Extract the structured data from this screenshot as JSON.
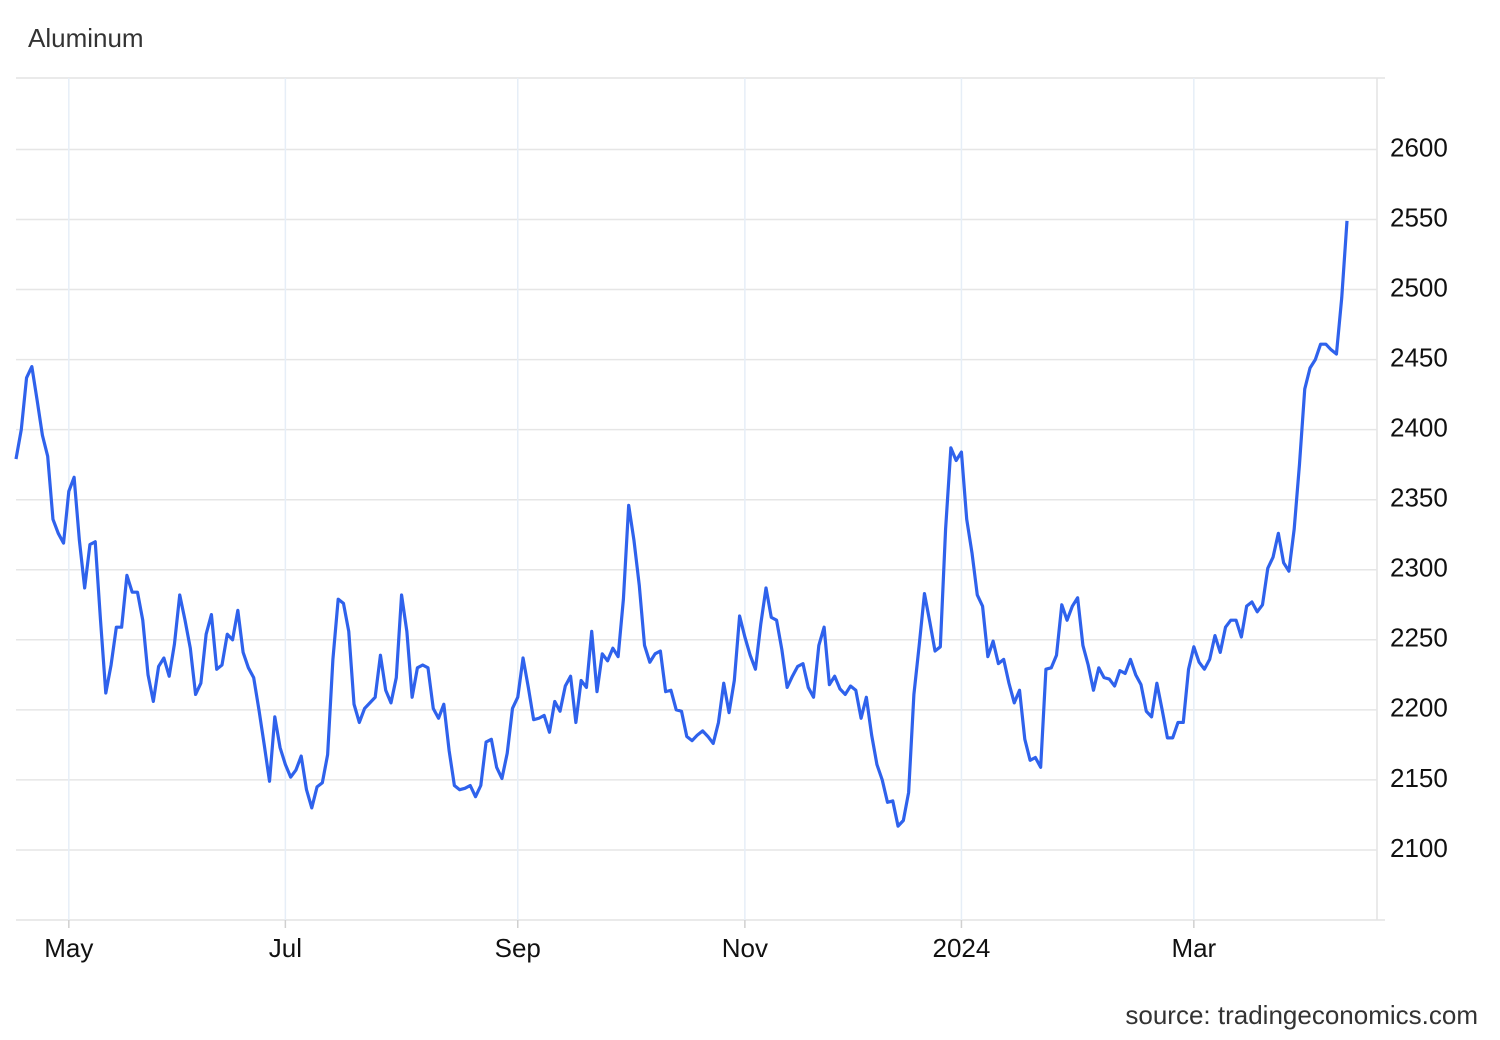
{
  "chart_data": {
    "type": "line",
    "title": "Aluminum",
    "source": "source: tradingeconomics.com",
    "categories": [
      null,
      null,
      null,
      null,
      null,
      null,
      null,
      null,
      null,
      null,
      "May",
      null,
      null,
      null,
      null,
      null,
      null,
      null,
      null,
      null,
      null,
      null,
      null,
      null,
      null,
      null,
      null,
      null,
      null,
      null,
      null,
      null,
      null,
      null,
      null,
      null,
      null,
      null,
      null,
      null,
      null,
      null,
      null,
      null,
      null,
      null,
      null,
      null,
      null,
      null,
      null,
      "Jul",
      null,
      null,
      null,
      null,
      null,
      null,
      null,
      null,
      null,
      null,
      null,
      null,
      null,
      null,
      null,
      null,
      null,
      null,
      null,
      null,
      null,
      null,
      null,
      null,
      null,
      null,
      null,
      null,
      null,
      null,
      null,
      null,
      null,
      null,
      null,
      null,
      null,
      null,
      null,
      null,
      null,
      null,
      null,
      "Sep",
      null,
      null,
      null,
      null,
      null,
      null,
      null,
      null,
      null,
      null,
      null,
      null,
      null,
      null,
      null,
      null,
      null,
      null,
      null,
      null,
      null,
      null,
      null,
      null,
      null,
      null,
      null,
      null,
      null,
      null,
      null,
      null,
      null,
      null,
      null,
      null,
      null,
      null,
      null,
      null,
      null,
      null,
      "Nov",
      null,
      null,
      null,
      null,
      null,
      null,
      null,
      null,
      null,
      null,
      null,
      null,
      null,
      null,
      null,
      null,
      null,
      null,
      null,
      null,
      null,
      null,
      null,
      null,
      null,
      null,
      null,
      null,
      null,
      null,
      null,
      null,
      null,
      null,
      null,
      null,
      null,
      null,
      null,
      null,
      "2024",
      null,
      null,
      null,
      null,
      null,
      null,
      null,
      null,
      null,
      null,
      null,
      null,
      null,
      null,
      null,
      null,
      null,
      null,
      null,
      null,
      null,
      null,
      null,
      null,
      null,
      null,
      null,
      null,
      null,
      null,
      null,
      null,
      null,
      null,
      null,
      null,
      null,
      null,
      null,
      null,
      null,
      null,
      null,
      "Mar",
      null,
      null,
      null,
      null,
      null,
      null,
      null,
      null,
      null,
      null,
      null,
      null,
      null,
      null,
      null,
      null,
      null,
      null,
      null,
      null,
      null,
      null,
      null,
      null,
      null,
      null,
      null,
      null,
      null
    ],
    "values": [
      2379,
      2400,
      2437,
      2445,
      2421,
      2396,
      2381,
      2336,
      2326,
      2319,
      2356,
      2366,
      2321,
      2287,
      2318,
      2320,
      2264,
      2212,
      2232,
      2259,
      2259,
      2296,
      2284,
      2284,
      2264,
      2225,
      2206,
      2231,
      2237,
      2224,
      2247,
      2282,
      2264,
      2244,
      2211,
      2219,
      2254,
      2268,
      2229,
      2232,
      2254,
      2250,
      2271,
      2241,
      2230,
      2223,
      2200,
      2175,
      2149,
      2195,
      2173,
      2161,
      2152,
      2157,
      2167,
      2143,
      2130,
      2145,
      2148,
      2168,
      2236,
      2279,
      2276,
      2256,
      2204,
      2191,
      2201,
      2205,
      2209,
      2239,
      2214,
      2205,
      2223,
      2282,
      2256,
      2209,
      2230,
      2232,
      2230,
      2201,
      2194,
      2204,
      2171,
      2146,
      2143,
      2144,
      2146,
      2138,
      2146,
      2177,
      2179,
      2159,
      2151,
      2169,
      2201,
      2209,
      2237,
      2216,
      2193,
      2194,
      2196,
      2184,
      2206,
      2199,
      2217,
      2224,
      2191,
      2221,
      2216,
      2256,
      2213,
      2240,
      2235,
      2244,
      2238,
      2279,
      2346,
      2321,
      2289,
      2246,
      2234,
      2240,
      2242,
      2213,
      2214,
      2200,
      2199,
      2181,
      2178,
      2182,
      2185,
      2181,
      2176,
      2191,
      2219,
      2198,
      2221,
      2267,
      2252,
      2239,
      2229,
      2261,
      2287,
      2266,
      2264,
      2243,
      2216,
      2224,
      2231,
      2233,
      2216,
      2209,
      2246,
      2259,
      2218,
      2224,
      2215,
      2211,
      2217,
      2214,
      2194,
      2209,
      2182,
      2161,
      2150,
      2134,
      2135,
      2117,
      2121,
      2141,
      2211,
      2246,
      2283,
      2263,
      2242,
      2245,
      2329,
      2387,
      2378,
      2384,
      2336,
      2312,
      2282,
      2274,
      2238,
      2249,
      2233,
      2236,
      2219,
      2205,
      2214,
      2179,
      2164,
      2166,
      2159,
      2229,
      2230,
      2239,
      2275,
      2264,
      2274,
      2280,
      2246,
      2232,
      2214,
      2230,
      2223,
      2222,
      2217,
      2228,
      2226,
      2236,
      2225,
      2218,
      2199,
      2195,
      2219,
      2200,
      2180,
      2180,
      2191,
      2191,
      2229,
      2245,
      2234,
      2229,
      2236,
      2253,
      2241,
      2259,
      2264,
      2264,
      2252,
      2274,
      2277,
      2270,
      2275,
      2301,
      2309,
      2326,
      2305,
      2299,
      2329,
      2375,
      2429,
      2444,
      2450,
      2461,
      2461,
      2457,
      2454,
      2494,
      2549
    ],
    "color": "#2f62ec",
    "ylim": [
      2050,
      2651
    ],
    "yticks": [
      2100,
      2150,
      2200,
      2250,
      2300,
      2350,
      2400,
      2450,
      2500,
      2550,
      2600
    ],
    "grid": true
  }
}
